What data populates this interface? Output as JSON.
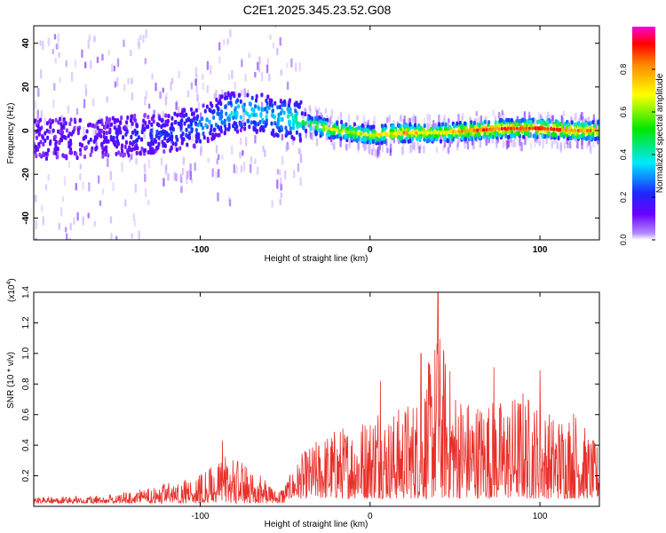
{
  "title": "C2E1.2025.345.23.52.G08",
  "chart_data": [
    {
      "type": "heatmap",
      "name": "spectrogram",
      "title": "C2E1.2025.345.23.52.G08",
      "xlabel": "Height of straight line (km)",
      "ylabel": "Frequency (Hz)",
      "xlim": [
        -198,
        135
      ],
      "ylim": [
        -50,
        48
      ],
      "xticks": [
        -100,
        0,
        100
      ],
      "xtick_labels": [
        "-100",
        "0",
        "100"
      ],
      "yticks": [
        -40,
        -20,
        0,
        20,
        40
      ],
      "ytick_labels": [
        "-40",
        "-20",
        "0",
        "20",
        "40"
      ],
      "ridge": {
        "x": [
          -198,
          -150,
          -120,
          -100,
          -85,
          -70,
          -55,
          -45,
          -35,
          -25,
          -10,
          0,
          20,
          40,
          60,
          80,
          100,
          120,
          135
        ],
        "freq": [
          -4,
          -3,
          -1,
          2,
          8,
          9,
          6,
          5,
          3,
          1,
          -1,
          -2,
          -1,
          -1,
          0,
          1,
          1,
          0,
          0
        ],
        "amplitude": [
          0.05,
          0.08,
          0.15,
          0.2,
          0.25,
          0.3,
          0.28,
          0.35,
          0.45,
          0.6,
          0.55,
          0.6,
          0.7,
          0.6,
          0.75,
          0.8,
          0.8,
          0.75,
          0.7
        ]
      },
      "colorbar": {
        "label": "Normalized spectral amplitude",
        "range": [
          0,
          1
        ],
        "ticks": [
          0.0,
          0.2,
          0.4,
          0.6,
          0.8
        ],
        "tick_labels": [
          "0.0",
          "0.2",
          "0.4",
          "0.6",
          "0.8"
        ]
      }
    },
    {
      "type": "line",
      "name": "snr",
      "xlabel": "Height of straight line (km)",
      "ylabel": "SNR (10 * v/v)",
      "scale_label_base": "(x10",
      "scale_label_exp": "4",
      "scale_label_close": ")",
      "xlim": [
        -198,
        135
      ],
      "ylim": [
        0.0,
        1.4
      ],
      "xticks": [
        -100,
        0,
        100
      ],
      "xtick_labels": [
        "-100",
        "0",
        "100"
      ],
      "yticks": [
        0.2,
        0.4,
        0.6,
        0.8,
        1.0,
        1.2,
        1.4
      ],
      "ytick_labels": [
        "0.2",
        "0.4",
        "0.6",
        "0.8",
        "1.0",
        "1.2",
        "1.4"
      ],
      "color": "#e8302a",
      "envelope": {
        "x": [
          -198,
          -160,
          -130,
          -110,
          -95,
          -85,
          -75,
          -65,
          -55,
          -50,
          -40,
          -30,
          -20,
          -10,
          0,
          5,
          10,
          20,
          30,
          40,
          50,
          60,
          70,
          80,
          90,
          100,
          110,
          120,
          130,
          135
        ],
        "upper": [
          0.06,
          0.07,
          0.12,
          0.18,
          0.25,
          0.35,
          0.28,
          0.22,
          0.1,
          0.15,
          0.35,
          0.45,
          0.52,
          0.55,
          0.62,
          0.72,
          0.6,
          0.68,
          0.75,
          1.2,
          0.8,
          0.7,
          0.72,
          0.7,
          0.78,
          0.66,
          0.6,
          0.66,
          0.45,
          0.4
        ]
      },
      "peaks": [
        {
          "x": -87,
          "y": 0.43
        },
        {
          "x": 6,
          "y": 0.82
        },
        {
          "x": 30,
          "y": 1.0
        },
        {
          "x": 40,
          "y": 1.4
        },
        {
          "x": 73,
          "y": 0.91
        },
        {
          "x": 100,
          "y": 0.89
        }
      ],
      "seed": 7
    }
  ]
}
